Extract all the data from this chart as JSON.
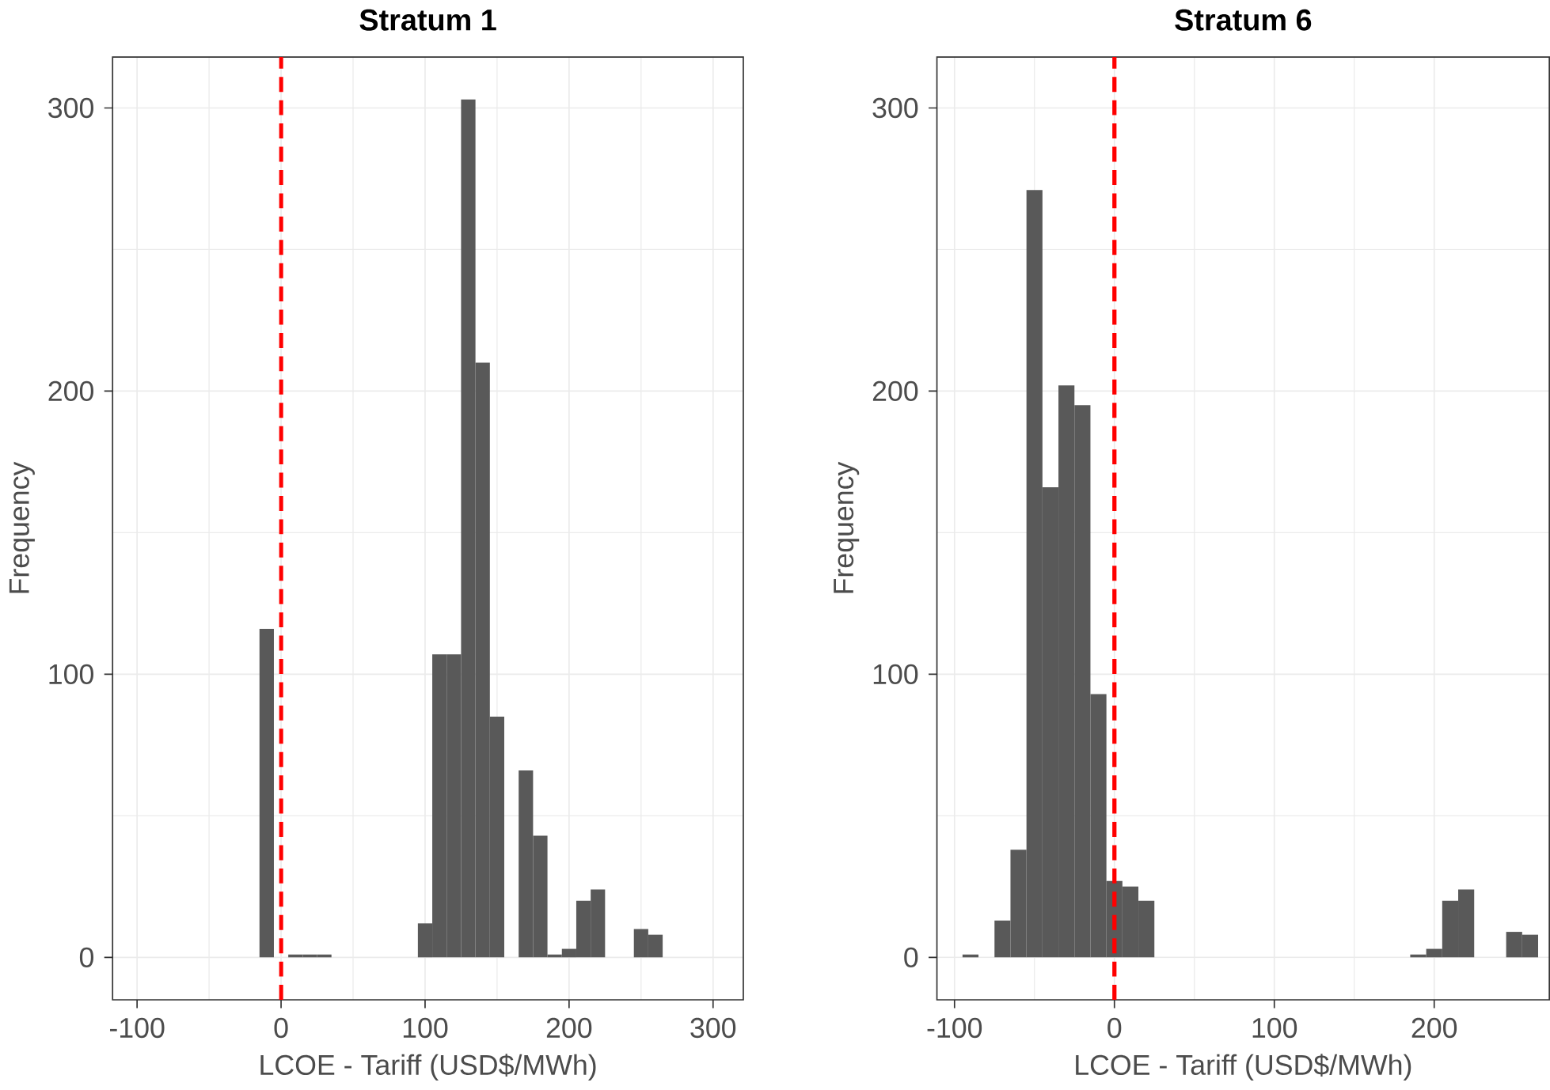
{
  "chart_data": [
    {
      "type": "histogram",
      "title": "Stratum 1",
      "xlabel": "LCOE - Tariff (USD$/MWh)",
      "ylabel": "Frequency",
      "bins": [
        -15,
        -5,
        5,
        15,
        25,
        35,
        45,
        55,
        65,
        75,
        85,
        95,
        105,
        115,
        125,
        135,
        145,
        155,
        165,
        175,
        185,
        195,
        205,
        215,
        225,
        235,
        245,
        255,
        265
      ],
      "values": [
        116,
        0,
        1,
        1,
        1,
        0,
        0,
        0,
        0,
        0,
        0,
        12,
        107,
        107,
        303,
        210,
        85,
        0,
        66,
        43,
        1,
        3,
        20,
        24,
        0,
        0,
        10,
        8
      ],
      "color": "#595959",
      "xlim": [
        -117,
        321
      ],
      "ylim": [
        -15,
        318
      ],
      "xticks": [
        -100,
        0,
        100,
        200,
        300
      ],
      "yticks": [
        0,
        100,
        200,
        300
      ],
      "grid": true,
      "ref_lines": [
        {
          "axis": "x",
          "value": 0,
          "color": "#ff0000",
          "line_style": "dashed"
        }
      ]
    },
    {
      "type": "histogram",
      "title": "Stratum 6",
      "xlabel": "LCOE - Tariff (USD$/MWh)",
      "ylabel": "Frequency",
      "bins": [
        -95,
        -85,
        -75,
        -65,
        -55,
        -45,
        -35,
        -25,
        -15,
        -5,
        5,
        15,
        25,
        35,
        45,
        55,
        65,
        75,
        85,
        95,
        105,
        115,
        125,
        135,
        145,
        155,
        165,
        175,
        185,
        195,
        205,
        215,
        225,
        235,
        245,
        255,
        265
      ],
      "values": [
        1,
        0,
        13,
        38,
        271,
        166,
        202,
        195,
        93,
        27,
        25,
        20,
        0,
        0,
        0,
        0,
        0,
        0,
        0,
        0,
        0,
        0,
        0,
        0,
        0,
        0,
        0,
        0,
        1,
        3,
        20,
        24,
        0,
        0,
        9,
        8
      ],
      "color": "#595959",
      "xlim": [
        -111,
        272
      ],
      "ylim": [
        -15,
        318
      ],
      "xticks": [
        -100,
        0,
        100,
        200
      ],
      "yticks": [
        0,
        100,
        200,
        300
      ],
      "grid": true,
      "ref_lines": [
        {
          "axis": "x",
          "value": 0,
          "color": "#ff0000",
          "line_style": "dashed"
        }
      ]
    }
  ]
}
